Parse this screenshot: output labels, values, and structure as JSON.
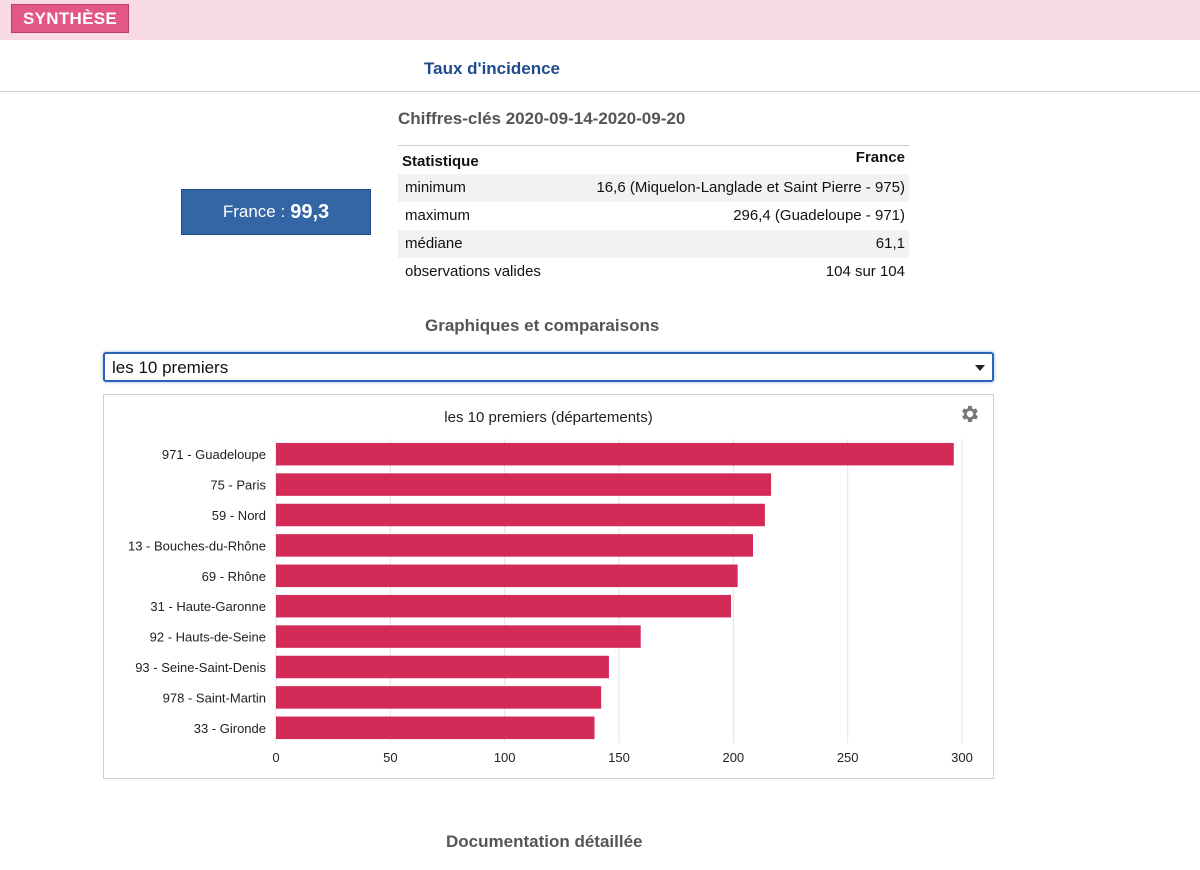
{
  "header": {
    "badge": "SYNTHÈSE"
  },
  "tab": {
    "title": "Taux d'incidence"
  },
  "key_figures": {
    "title": "Chiffres-clés 2020-09-14-2020-09-20",
    "france_label": "France :",
    "france_value": "99,3",
    "table": {
      "col_stat": "Statistique",
      "col_france": "France",
      "rows": [
        {
          "label": "minimum",
          "value": "16,6 (Miquelon-Langlade et Saint Pierre - 975)"
        },
        {
          "label": "maximum",
          "value": "296,4 (Guadeloupe - 971)"
        },
        {
          "label": "médiane",
          "value": "61,1"
        },
        {
          "label": "observations valides",
          "value": "104 sur 104"
        }
      ]
    }
  },
  "graphs": {
    "title": "Graphiques et comparaisons",
    "select_value": "les 10 premiers"
  },
  "chart_data": {
    "type": "bar",
    "orientation": "horizontal",
    "title": "les 10 premiers (départements)",
    "categories": [
      "971 - Guadeloupe",
      "75 - Paris",
      "59 - Nord",
      "13 - Bouches-du-Rhône",
      "69 - Rhône",
      "31 - Haute-Garonne",
      "92 - Hauts-de-Seine",
      "93 - Seine-Saint-Denis",
      "978 - Saint-Martin",
      "33 - Gironde"
    ],
    "values": [
      296.4,
      216.5,
      213.8,
      208.6,
      201.9,
      199.0,
      159.5,
      145.6,
      142.2,
      139.3
    ],
    "xlim": [
      0,
      300
    ],
    "xticks": [
      0,
      50,
      100,
      150,
      200,
      250,
      300
    ],
    "bar_color": "#d42a58",
    "xlabel": "",
    "ylabel": ""
  },
  "documentation": {
    "title": "Documentation détaillée"
  }
}
